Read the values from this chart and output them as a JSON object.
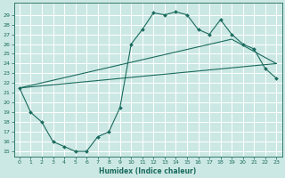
{
  "xlabel": "Humidex (Indice chaleur)",
  "bg_color": "#cce8e4",
  "grid_color": "#ffffff",
  "line_color": "#1a6b5e",
  "xlim": [
    -0.5,
    23.5
  ],
  "ylim": [
    14.5,
    30.2
  ],
  "xticks": [
    0,
    1,
    2,
    3,
    4,
    5,
    6,
    7,
    8,
    9,
    10,
    11,
    12,
    13,
    14,
    15,
    16,
    17,
    18,
    19,
    20,
    21,
    22,
    23
  ],
  "yticks": [
    15,
    16,
    17,
    18,
    19,
    20,
    21,
    22,
    23,
    24,
    25,
    26,
    27,
    28,
    29
  ],
  "curve1_x": [
    0,
    1,
    2,
    3,
    4,
    5,
    6,
    7,
    8,
    9,
    10,
    11,
    12,
    13,
    14,
    15,
    16,
    17,
    18,
    19,
    20,
    21,
    22,
    23
  ],
  "curve1_y": [
    21.5,
    19,
    18,
    16,
    15.5,
    15,
    15,
    16.5,
    17,
    19.5,
    26,
    27.5,
    29.2,
    29.0,
    29.3,
    29.0,
    27.5,
    27.0,
    28.5,
    27.0,
    26.0,
    25.5,
    23.5,
    22.5
  ],
  "curve2_x": [
    0,
    23
  ],
  "curve2_y": [
    21.5,
    24.0
  ],
  "curve3_x": [
    0,
    19,
    23
  ],
  "curve3_y": [
    21.5,
    26.5,
    24.0
  ]
}
